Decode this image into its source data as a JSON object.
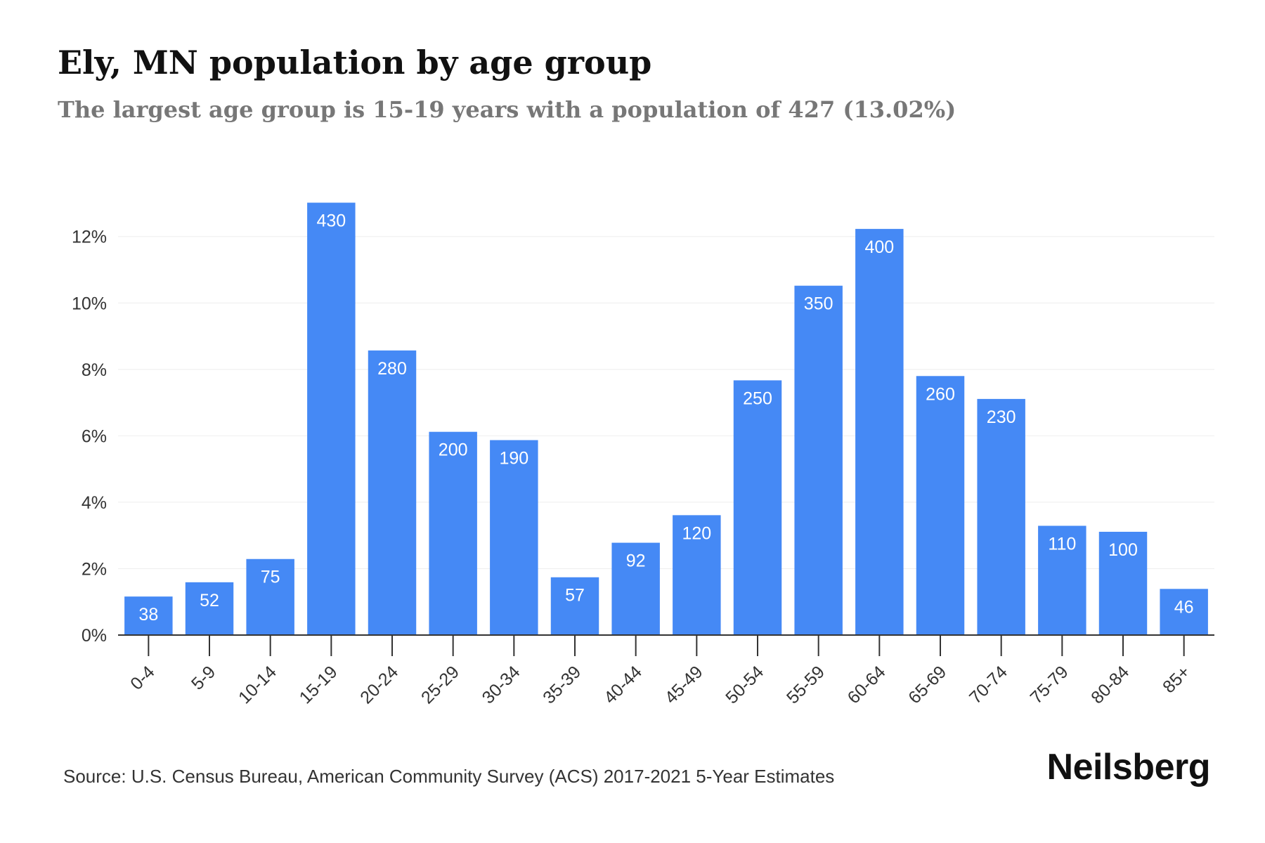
{
  "header": {
    "title": "Ely, MN population by age group",
    "subtitle": "The largest age group is 15-19 years with a population of 427 (13.02%)"
  },
  "footer": {
    "source": "Source: U.S. Census Bureau, American Community Survey (ACS) 2017-2021 5-Year Estimates",
    "brand": "Neilsberg"
  },
  "colors": {
    "bar": "#4589f5",
    "bar_label": "#ffffff",
    "grid": "#eeeeee",
    "axis": "#333333",
    "tick_text": "#333333"
  },
  "chart_data": {
    "type": "bar",
    "title": "Ely, MN population by age group",
    "subtitle": "The largest age group is 15-19 years with a population of 427 (13.02%)",
    "xlabel": "",
    "ylabel": "",
    "y_unit": "%",
    "ylim": [
      0,
      13.2
    ],
    "yticks": [
      0,
      2,
      4,
      6,
      8,
      10,
      12
    ],
    "ytick_labels": [
      "0%",
      "2%",
      "4%",
      "6%",
      "8%",
      "10%",
      "12%"
    ],
    "grid": true,
    "legend": false,
    "categories": [
      "0-4",
      "5-9",
      "10-14",
      "15-19",
      "20-24",
      "25-29",
      "30-34",
      "35-39",
      "40-44",
      "45-49",
      "50-54",
      "55-59",
      "60-64",
      "65-69",
      "70-74",
      "75-79",
      "80-84",
      "85+"
    ],
    "values": [
      1.16,
      1.59,
      2.29,
      13.02,
      8.57,
      6.12,
      5.87,
      1.74,
      2.78,
      3.61,
      7.67,
      10.52,
      12.23,
      7.8,
      7.11,
      3.29,
      3.11,
      1.39
    ],
    "data_labels": [
      "38",
      "52",
      "75",
      "430",
      "280",
      "200",
      "190",
      "57",
      "92",
      "120",
      "250",
      "350",
      "400",
      "260",
      "230",
      "110",
      "100",
      "46"
    ]
  }
}
